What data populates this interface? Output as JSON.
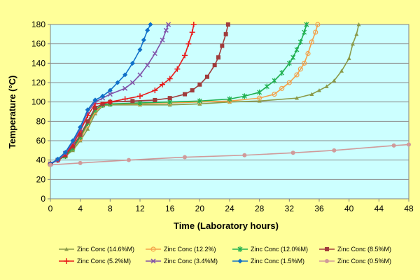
{
  "chart_data": {
    "type": "line",
    "xlabel": "Time (Laboratory hours)",
    "ylabel": "Temperature (°C)",
    "xlim": [
      0,
      48
    ],
    "ylim": [
      0,
      180
    ],
    "xticks": [
      0,
      4,
      8,
      12,
      16,
      20,
      24,
      28,
      32,
      36,
      40,
      44,
      48
    ],
    "yticks": [
      0,
      20,
      40,
      60,
      80,
      100,
      120,
      140,
      160,
      180
    ],
    "grid": "horizontal",
    "legend_position": "bottom",
    "plot_background": "#ccffff",
    "page_background": "#ffff99",
    "series": [
      {
        "name": "Zinc Conc (14.6%M)",
        "color": "#8a9a48",
        "marker": "triangle",
        "points": [
          [
            0,
            36
          ],
          [
            1,
            40
          ],
          [
            2,
            44
          ],
          [
            3,
            50
          ],
          [
            4,
            60
          ],
          [
            5,
            72
          ],
          [
            6,
            88
          ],
          [
            7,
            96
          ],
          [
            8,
            97
          ],
          [
            12,
            97
          ],
          [
            16,
            97
          ],
          [
            20,
            98
          ],
          [
            24,
            100
          ],
          [
            28,
            101
          ],
          [
            33,
            104
          ],
          [
            35,
            108
          ],
          [
            36,
            112
          ],
          [
            37,
            116
          ],
          [
            38,
            122
          ],
          [
            39,
            132
          ],
          [
            40,
            145
          ],
          [
            40.5,
            160
          ],
          [
            41,
            170
          ],
          [
            41.3,
            180
          ]
        ]
      },
      {
        "name": "Zinc Conc (12.2%)",
        "color": "#f4a048",
        "marker": "circle-open",
        "points": [
          [
            0,
            36
          ],
          [
            1,
            40
          ],
          [
            2,
            44
          ],
          [
            3,
            52
          ],
          [
            4,
            62
          ],
          [
            5,
            76
          ],
          [
            6,
            90
          ],
          [
            7,
            97
          ],
          [
            8,
            98
          ],
          [
            12,
            98
          ],
          [
            16,
            99
          ],
          [
            20,
            100
          ],
          [
            24,
            101
          ],
          [
            28,
            104
          ],
          [
            30,
            108
          ],
          [
            31,
            114
          ],
          [
            32,
            120
          ],
          [
            33,
            128
          ],
          [
            33.5,
            134
          ],
          [
            34,
            140
          ],
          [
            34.5,
            150
          ],
          [
            35,
            162
          ],
          [
            35.5,
            172
          ],
          [
            35.8,
            180
          ]
        ]
      },
      {
        "name": "Zinc Conc (12.0%M)",
        "color": "#20b050",
        "marker": "star",
        "points": [
          [
            0,
            36
          ],
          [
            1,
            40
          ],
          [
            2,
            44
          ],
          [
            3,
            52
          ],
          [
            4,
            64
          ],
          [
            5,
            78
          ],
          [
            6,
            92
          ],
          [
            7,
            97
          ],
          [
            8,
            98
          ],
          [
            12,
            99
          ],
          [
            16,
            100
          ],
          [
            20,
            101
          ],
          [
            24,
            103
          ],
          [
            26,
            106
          ],
          [
            28,
            110
          ],
          [
            29,
            116
          ],
          [
            30,
            122
          ],
          [
            31,
            130
          ],
          [
            32,
            140
          ],
          [
            32.5,
            146
          ],
          [
            33,
            154
          ],
          [
            33.5,
            162
          ],
          [
            34,
            172
          ],
          [
            34.3,
            180
          ]
        ]
      },
      {
        "name": "Zinc Conc (8.5%M)",
        "color": "#a03c3c",
        "marker": "square",
        "points": [
          [
            0,
            36
          ],
          [
            1,
            40
          ],
          [
            2,
            45
          ],
          [
            3,
            54
          ],
          [
            4,
            66
          ],
          [
            5,
            80
          ],
          [
            6,
            94
          ],
          [
            7,
            98
          ],
          [
            8,
            100
          ],
          [
            11,
            101
          ],
          [
            14,
            102
          ],
          [
            16,
            104
          ],
          [
            18,
            108
          ],
          [
            19,
            112
          ],
          [
            20,
            118
          ],
          [
            21,
            126
          ],
          [
            22,
            138
          ],
          [
            22.5,
            146
          ],
          [
            23,
            158
          ],
          [
            23.5,
            170
          ],
          [
            23.8,
            180
          ]
        ]
      },
      {
        "name": "Zinc Conc (5.2%M)",
        "color": "#e81818",
        "marker": "plus",
        "points": [
          [
            0,
            36
          ],
          [
            1,
            40
          ],
          [
            2,
            46
          ],
          [
            3,
            56
          ],
          [
            4,
            70
          ],
          [
            5,
            86
          ],
          [
            6,
            98
          ],
          [
            8,
            100
          ],
          [
            10,
            103
          ],
          [
            12,
            106
          ],
          [
            14,
            112
          ],
          [
            15,
            118
          ],
          [
            16,
            124
          ],
          [
            17,
            134
          ],
          [
            18,
            148
          ],
          [
            18.5,
            160
          ],
          [
            19,
            172
          ],
          [
            19.2,
            180
          ]
        ]
      },
      {
        "name": "Zinc Conc (3.4%M)",
        "color": "#8050a8",
        "marker": "x",
        "points": [
          [
            0,
            36
          ],
          [
            1,
            40
          ],
          [
            2,
            47
          ],
          [
            3,
            58
          ],
          [
            4,
            72
          ],
          [
            5,
            90
          ],
          [
            6,
            100
          ],
          [
            7,
            104
          ],
          [
            8,
            108
          ],
          [
            10,
            114
          ],
          [
            11,
            120
          ],
          [
            12,
            128
          ],
          [
            13,
            138
          ],
          [
            14,
            150
          ],
          [
            15,
            164
          ],
          [
            15.5,
            174
          ],
          [
            15.8,
            180
          ]
        ]
      },
      {
        "name": "Zinc Conc (1.5%M)",
        "color": "#1070c8",
        "marker": "diamond",
        "points": [
          [
            0,
            36
          ],
          [
            1,
            41
          ],
          [
            2,
            48
          ],
          [
            3,
            60
          ],
          [
            4,
            74
          ],
          [
            5,
            92
          ],
          [
            6,
            102
          ],
          [
            7,
            106
          ],
          [
            8,
            112
          ],
          [
            9,
            120
          ],
          [
            10,
            128
          ],
          [
            11,
            140
          ],
          [
            12,
            154
          ],
          [
            12.5,
            164
          ],
          [
            13,
            174
          ],
          [
            13.4,
            180
          ]
        ]
      },
      {
        "name": "Zinc Conc (0.5%M)",
        "color": "#d09a9a",
        "marker": "circle",
        "points": [
          [
            0,
            35
          ],
          [
            4,
            37
          ],
          [
            10.5,
            40
          ],
          [
            18,
            43
          ],
          [
            26,
            45
          ],
          [
            32.5,
            47.5
          ],
          [
            38,
            50
          ],
          [
            46,
            55
          ],
          [
            48,
            56
          ]
        ]
      }
    ]
  }
}
